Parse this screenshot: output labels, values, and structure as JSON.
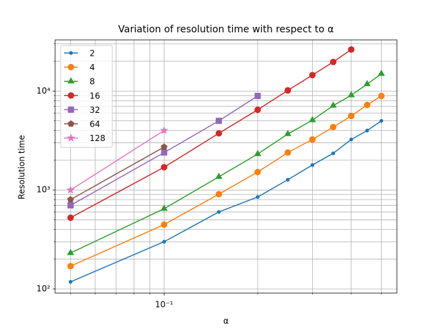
{
  "chart_data": {
    "type": "line",
    "title": "Variation of resolution time with respect to α",
    "x_label": "α",
    "y_label": "Resolution time",
    "x": [
      0.05,
      0.1,
      0.15,
      0.2,
      0.25,
      0.3,
      0.35,
      0.4,
      0.45,
      0.5
    ],
    "series": [
      {
        "name": "2",
        "color": "#1f77b4",
        "marker": "point",
        "values": [
          118,
          300,
          600,
          850,
          1270,
          1790,
          2350,
          3240,
          3990,
          5000
        ]
      },
      {
        "name": "4",
        "color": "#ff7f0e",
        "marker": "circle",
        "values": [
          170,
          447,
          908,
          1520,
          2390,
          3240,
          4330,
          5600,
          7240,
          8930
        ]
      },
      {
        "name": "8",
        "color": "#2ca02c",
        "marker": "triangle",
        "values": [
          231,
          647,
          1360,
          2310,
          3680,
          5080,
          7130,
          9080,
          11750,
          14960
        ]
      },
      {
        "name": "16",
        "color": "#d62728",
        "marker": "circle",
        "values": [
          525,
          1700,
          3740,
          6470,
          10160,
          14500,
          19700,
          26300,
          null,
          null
        ]
      },
      {
        "name": "32",
        "color": "#9467bd",
        "marker": "square",
        "values": [
          700,
          2390,
          5000,
          8930,
          null,
          null,
          null,
          null,
          null,
          null
        ]
      },
      {
        "name": "64",
        "color": "#8c564b",
        "marker": "pentagon",
        "values": [
          800,
          2720,
          null,
          null,
          null,
          null,
          null,
          null,
          null,
          null
        ]
      },
      {
        "name": "128",
        "color": "#e377c2",
        "marker": "star",
        "values": [
          1000,
          4000,
          null,
          null,
          null,
          null,
          null,
          null,
          null,
          null
        ]
      }
    ],
    "xscale": "log",
    "yscale": "log",
    "xlim": [
      0.0446,
      0.561
    ],
    "ylim": [
      90.8,
      32900
    ],
    "xticks": [
      {
        "value": 0.1,
        "label": "10⁻¹"
      }
    ],
    "xminorticks": [
      0.05,
      0.06,
      0.07,
      0.08,
      0.09,
      0.2,
      0.3,
      0.4,
      0.5
    ],
    "yticks": [
      {
        "value": 100,
        "label": "10²"
      },
      {
        "value": 1000,
        "label": "10³"
      },
      {
        "value": 10000,
        "label": "10⁴"
      }
    ],
    "yminorticks": [
      200,
      300,
      400,
      500,
      600,
      700,
      800,
      900,
      2000,
      3000,
      4000,
      5000,
      6000,
      7000,
      8000,
      9000,
      20000,
      30000
    ],
    "grid": true,
    "legend": "upper left"
  }
}
